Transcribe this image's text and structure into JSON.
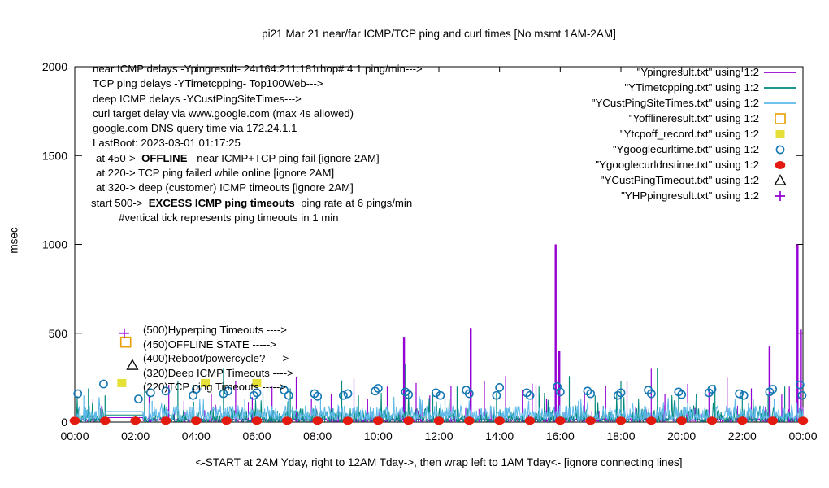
{
  "title": "pi21 Mar 21  near/far ICMP/TCP ping and curl times [No msmt 1AM-2AM]",
  "x_axis": {
    "label": "<-START at 2AM Yday, right to 12AM Tday->, then wrap left to 1AM Tday<- [ignore connecting lines]",
    "tick_labels": [
      "00:00",
      "02:00",
      "04:00",
      "06:00",
      "08:00",
      "10:00",
      "12:00",
      "14:00",
      "16:00",
      "18:00",
      "20:00",
      "22:00",
      "00:00"
    ],
    "tick_hours": [
      0,
      2,
      4,
      6,
      8,
      10,
      12,
      14,
      16,
      18,
      20,
      22,
      24
    ]
  },
  "y_axis": {
    "label": "msec",
    "ticks": [
      0,
      500,
      1000,
      1500,
      2000
    ],
    "range": [
      0,
      2000
    ]
  },
  "annotations": {
    "lines": [
      {
        "indent": 2,
        "segments": [
          {
            "t": "near ICMP delays -Ypingresult- 24.164.211.181 hop# 4 1 ping/min--->",
            "b": false
          }
        ]
      },
      {
        "indent": 2,
        "segments": [
          {
            "t": "TCP ping delays -YTimetcpping- Top100Web--->",
            "b": false
          }
        ]
      },
      {
        "indent": 2,
        "segments": [
          {
            "t": "deep ICMP delays -YCustPingSiteTimes--->",
            "b": false
          }
        ]
      },
      {
        "indent": 2,
        "segments": [
          {
            "t": "curl target delay via www.google.com (max 4s allowed)",
            "b": false
          }
        ]
      },
      {
        "indent": 2,
        "segments": [
          {
            "t": "google.com DNS query time via 172.24.1.1",
            "b": false
          }
        ]
      },
      {
        "indent": 2,
        "segments": [
          {
            "t": "LastBoot: 2023-03-01 01:17:25",
            "b": false
          }
        ]
      },
      {
        "indent": 6,
        "segments": [
          {
            "t": "at 450->  ",
            "b": false
          },
          {
            "t": "OFFLINE",
            "b": true
          },
          {
            "t": "  -near ICMP+TCP ping fail [ignore 2AM]",
            "b": false
          }
        ]
      },
      {
        "indent": 6,
        "segments": [
          {
            "t": "at 220-> TCP ping failed while online [ignore 2AM]",
            "b": false
          }
        ]
      },
      {
        "indent": 6,
        "segments": [
          {
            "t": "at 320-> deep (customer) ICMP timeouts [ignore 2AM]",
            "b": false
          }
        ]
      },
      {
        "indent": 0,
        "segments": [
          {
            "t": "start 500->  ",
            "b": false
          },
          {
            "t": "EXCESS ICMP ping timeouts",
            "b": true
          },
          {
            "t": "  ping rate at 6 pings/min",
            "b": false
          }
        ]
      },
      {
        "indent": 34,
        "segments": [
          {
            "t": "#vertical tick represents ping timeouts in 1 min",
            "b": false
          }
        ]
      }
    ]
  },
  "mid_labels": [
    {
      "label": "(500)Hyperping Timeouts ---->",
      "marker": "plus",
      "level_msec": 500
    },
    {
      "label": "(450)OFFLINE STATE ----->",
      "marker": "open-square",
      "level_msec": 450
    },
    {
      "label": "(400)Reboot/powercycle? ---->",
      "marker": "none",
      "level_msec": 400
    },
    {
      "label": "(320)Deep ICMP Timeouts ---->",
      "marker": "open-triangle",
      "level_msec": 320
    },
    {
      "label": "(220)TCP ping Timeouts ----->",
      "marker": "filled-square",
      "level_msec": 220
    }
  ],
  "legend": [
    {
      "label": "\"Ypingresult.txt\" using 1:2",
      "marker": "line",
      "color": "#9400D3"
    },
    {
      "label": "\"YTimetcpping.txt\" using 1:2",
      "marker": "line",
      "color": "#00897B"
    },
    {
      "label": "\"YCustPingSiteTimes.txt\" using 1:2",
      "marker": "line",
      "color": "#5DB9E8"
    },
    {
      "label": "\"Yofflineresult.txt\" using 1:2",
      "marker": "open-square",
      "color": "#E8A000"
    },
    {
      "label": "\"Ytcpoff_record.txt\" using 1:2",
      "marker": "filled-square",
      "color": "#E5E035"
    },
    {
      "label": "\"Ygooglecurltime.txt\" using 1:2",
      "marker": "open-circle",
      "color": "#1477B4"
    },
    {
      "label": "\"Ygooglecurldnstime.txt\" using 1:2",
      "marker": "filled-circle",
      "color": "#E31A10"
    },
    {
      "label": "\"YCustPingTimeout.txt\" using 1:2",
      "marker": "open-triangle",
      "color": "#000000"
    },
    {
      "label": "\"YHPpingresult.txt\" using 1:2",
      "marker": "plus",
      "color": "#9400D3"
    }
  ],
  "chart_data": {
    "type": "line",
    "title": "pi21 Mar 21  near/far ICMP/TCP ping and curl times [No msmt 1AM-2AM]",
    "xlabel": "<-START at 2AM Yday, right to 12AM Tday->, then wrap left to 1AM Tday<- [ignore connecting lines]",
    "ylabel": "msec",
    "x_unit": "hours_0_to_24",
    "ylim": [
      0,
      2000
    ],
    "grid": false,
    "legend_position": "top-right-inside",
    "measurement_gap_hours": [
      1.0,
      2.25
    ],
    "series": [
      {
        "name": "Ypingresult.txt",
        "desc": "near ICMP ping delay, vertical ticks = timeouts",
        "style": "impulses",
        "color": "#9400D3",
        "baseline_msec": [
          4,
          20
        ],
        "connect_level_msec": 25,
        "spikes": [
          [
            0.6,
            130
          ],
          [
            2.45,
            150
          ],
          [
            3.1,
            210
          ],
          [
            3.6,
            120
          ],
          [
            4.5,
            160
          ],
          [
            5.3,
            230
          ],
          [
            5.85,
            140
          ],
          [
            6.5,
            200
          ],
          [
            7.3,
            255
          ],
          [
            7.8,
            130
          ],
          [
            8.45,
            160
          ],
          [
            9.2,
            245
          ],
          [
            9.65,
            130
          ],
          [
            10.3,
            200
          ],
          [
            10.85,
            480
          ],
          [
            11.25,
            220
          ],
          [
            11.7,
            150
          ],
          [
            12.4,
            205
          ],
          [
            13.05,
            530
          ],
          [
            13.5,
            230
          ],
          [
            14.2,
            260
          ],
          [
            14.75,
            180
          ],
          [
            15.2,
            210
          ],
          [
            15.55,
            130
          ],
          [
            15.85,
            1000
          ],
          [
            15.97,
            400
          ],
          [
            16.8,
            170
          ],
          [
            17.5,
            205
          ],
          [
            18.2,
            230
          ],
          [
            19.0,
            300
          ],
          [
            19.45,
            160
          ],
          [
            20.2,
            215
          ],
          [
            20.9,
            185
          ],
          [
            21.5,
            250
          ],
          [
            22.3,
            190
          ],
          [
            22.9,
            425
          ],
          [
            23.3,
            155
          ],
          [
            23.55,
            200
          ],
          [
            23.82,
            1000
          ],
          [
            23.93,
            520
          ]
        ]
      },
      {
        "name": "YTimetcpping.txt",
        "desc": "TCP ping delay Top100Web",
        "style": "line",
        "color": "#00897B",
        "noise_msec": [
          3,
          80
        ],
        "connect_level_msec": 40,
        "spikes": [
          [
            0.45,
            190
          ],
          [
            1.0,
            150
          ],
          [
            2.3,
            180
          ],
          [
            3.4,
            230
          ],
          [
            4.9,
            300
          ],
          [
            6.2,
            160
          ],
          [
            7.1,
            190
          ],
          [
            8.8,
            235
          ],
          [
            9.35,
            150
          ],
          [
            10.9,
            330
          ],
          [
            11.8,
            170
          ],
          [
            12.6,
            200
          ],
          [
            13.9,
            165
          ],
          [
            15.3,
            200
          ],
          [
            16.3,
            260
          ],
          [
            17.15,
            150
          ],
          [
            18.0,
            230
          ],
          [
            19.2,
            305
          ],
          [
            19.9,
            160
          ],
          [
            21.1,
            210
          ],
          [
            22.0,
            180
          ],
          [
            22.85,
            150
          ],
          [
            23.4,
            200
          ]
        ]
      },
      {
        "name": "YCustPingSiteTimes.txt",
        "desc": "deep customer ICMP delay",
        "style": "line",
        "color": "#5DB9E8",
        "noise_msec": [
          15,
          95
        ],
        "connect_level_msec": 60,
        "spikes": [
          [
            0.3,
            150
          ],
          [
            2.55,
            120
          ],
          [
            5.6,
            130
          ],
          [
            8.1,
            140
          ],
          [
            12.2,
            130
          ],
          [
            16.6,
            120
          ],
          [
            20.5,
            140
          ],
          [
            23.05,
            130
          ]
        ]
      },
      {
        "name": "Yofflineresult.txt",
        "desc": "OFFLINE state marker at 450",
        "style": "points",
        "marker": "open-square",
        "color": "#E8A000",
        "points": [
          [
            1.68,
            450
          ]
        ]
      },
      {
        "name": "Ytcpoff_record.txt",
        "desc": "TCP ping failed while online at 220",
        "style": "points",
        "marker": "filled-square",
        "color": "#E5E035",
        "points": [
          [
            1.55,
            220
          ],
          [
            4.3,
            220
          ],
          [
            6.0,
            220
          ]
        ]
      },
      {
        "name": "Ygooglecurltime.txt",
        "desc": "curl www.google.com delay",
        "style": "points",
        "marker": "open-circle",
        "color": "#1477B4",
        "points": [
          [
            0.1,
            160
          ],
          [
            0.95,
            215
          ],
          [
            2.1,
            130
          ],
          [
            2.5,
            165
          ],
          [
            3.0,
            175
          ],
          [
            3.9,
            150
          ],
          [
            4.0,
            185
          ],
          [
            4.9,
            160
          ],
          [
            5.05,
            175
          ],
          [
            5.9,
            150
          ],
          [
            6.0,
            165
          ],
          [
            6.9,
            180
          ],
          [
            7.05,
            150
          ],
          [
            7.9,
            160
          ],
          [
            8.0,
            145
          ],
          [
            8.85,
            150
          ],
          [
            9.0,
            160
          ],
          [
            9.9,
            175
          ],
          [
            10.0,
            190
          ],
          [
            10.9,
            170
          ],
          [
            11.0,
            155
          ],
          [
            11.9,
            165
          ],
          [
            12.05,
            150
          ],
          [
            12.9,
            180
          ],
          [
            13.0,
            160
          ],
          [
            13.9,
            150
          ],
          [
            14.0,
            195
          ],
          [
            14.9,
            165
          ],
          [
            15.0,
            150
          ],
          [
            15.9,
            200
          ],
          [
            16.0,
            170
          ],
          [
            16.9,
            175
          ],
          [
            17.0,
            160
          ],
          [
            17.9,
            150
          ],
          [
            18.0,
            165
          ],
          [
            18.9,
            180
          ],
          [
            19.0,
            160
          ],
          [
            19.9,
            170
          ],
          [
            20.0,
            155
          ],
          [
            20.9,
            165
          ],
          [
            21.0,
            185
          ],
          [
            21.9,
            160
          ],
          [
            22.05,
            150
          ],
          [
            22.9,
            170
          ],
          [
            23.0,
            185
          ],
          [
            23.9,
            210
          ],
          [
            23.97,
            150
          ]
        ]
      },
      {
        "name": "Ygooglecurldnstime.txt",
        "desc": "google.com DNS query time via 172.24.1.1",
        "style": "points",
        "marker": "filled-circle",
        "color": "#E31A10",
        "points": [
          [
            0,
            8
          ],
          [
            1,
            8
          ],
          [
            2,
            8
          ],
          [
            3,
            8
          ],
          [
            4,
            8
          ],
          [
            5,
            8
          ],
          [
            6,
            8
          ],
          [
            7,
            8
          ],
          [
            8,
            8
          ],
          [
            9,
            8
          ],
          [
            10,
            8
          ],
          [
            11,
            8
          ],
          [
            12,
            8
          ],
          [
            13,
            8
          ],
          [
            14,
            8
          ],
          [
            15,
            8
          ],
          [
            16,
            8
          ],
          [
            17,
            8
          ],
          [
            18,
            8
          ],
          [
            19,
            8
          ],
          [
            20,
            8
          ],
          [
            21,
            8
          ],
          [
            22,
            8
          ],
          [
            23,
            8
          ],
          [
            24,
            8
          ]
        ]
      },
      {
        "name": "YCustPingTimeout.txt",
        "desc": "deep ICMP timeout marker at 320",
        "style": "points",
        "marker": "open-triangle",
        "color": "#000000",
        "points": [
          [
            1.9,
            320
          ]
        ]
      },
      {
        "name": "YHPpingresult.txt",
        "desc": "hyperping excess timeout marker at 500",
        "style": "points",
        "marker": "plus",
        "color": "#9400D3",
        "points": [
          [
            1.63,
            500
          ]
        ]
      }
    ]
  }
}
